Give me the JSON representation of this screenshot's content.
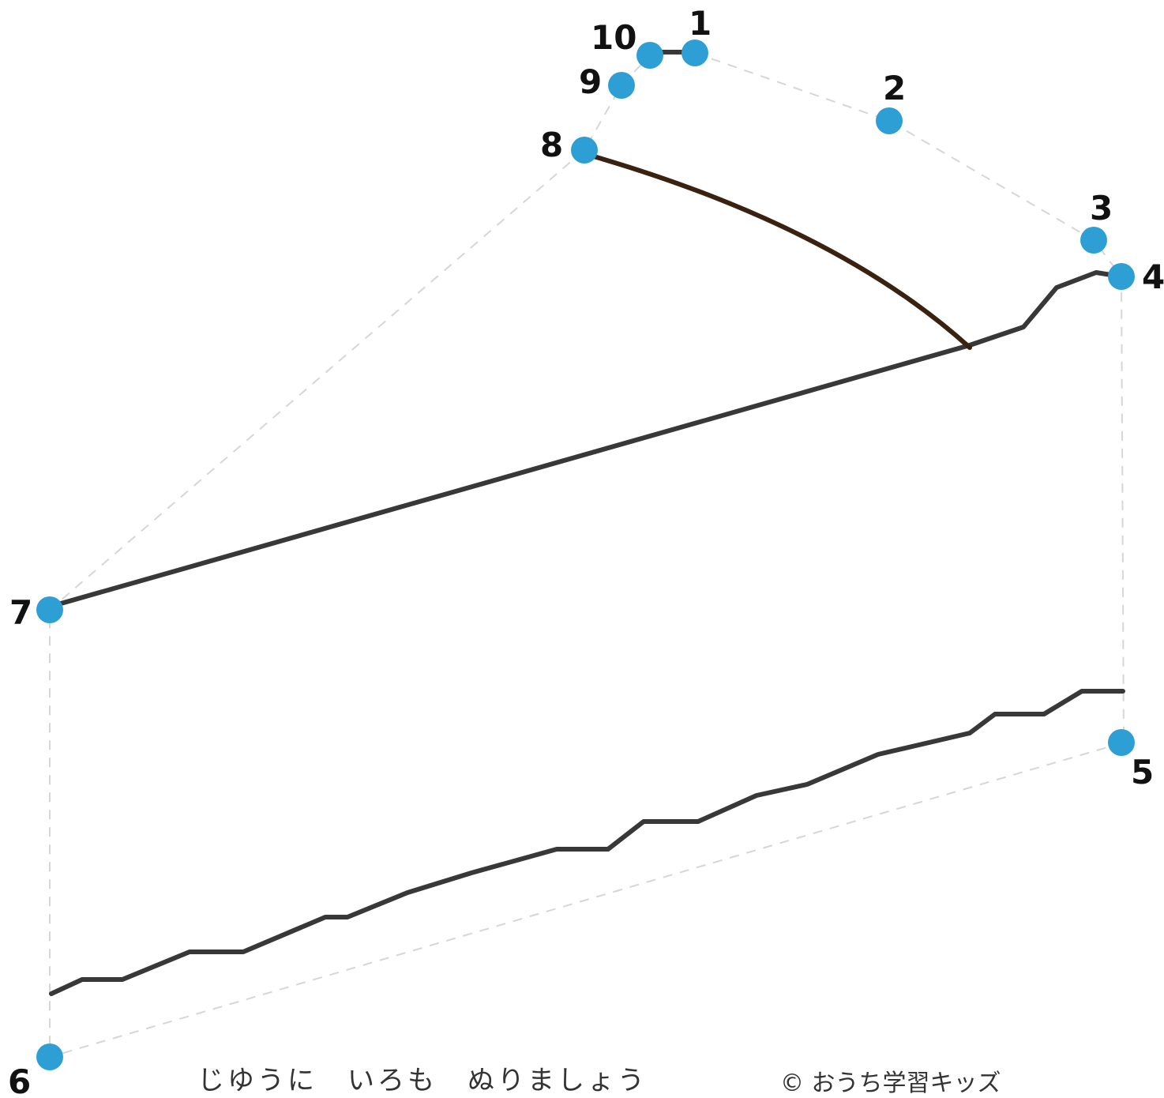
{
  "puzzle": {
    "dots": [
      {
        "n": "1"
      },
      {
        "n": "2"
      },
      {
        "n": "3"
      },
      {
        "n": "4"
      },
      {
        "n": "5"
      },
      {
        "n": "6"
      },
      {
        "n": "7"
      },
      {
        "n": "8"
      },
      {
        "n": "9"
      },
      {
        "n": "10"
      }
    ],
    "colors": {
      "dot": "#2e9fd4",
      "guide": "#d6d6d6",
      "ink": "#383838",
      "strap": "#3a2210"
    }
  },
  "footer": {
    "instruction": "じゆうに　いろも　ぬりましょう",
    "copyright": "© おうち学習キッズ"
  }
}
